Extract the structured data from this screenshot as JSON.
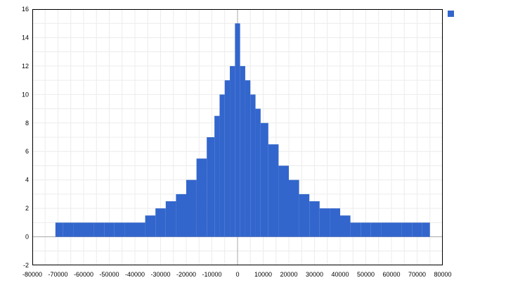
{
  "chart_data": {
    "type": "bar",
    "title": "",
    "xlabel": "",
    "ylabel": "",
    "xlim": [
      -80000,
      80000
    ],
    "ylim": [
      -2,
      16
    ],
    "xticks": [
      -80000,
      -70000,
      -60000,
      -50000,
      -40000,
      -30000,
      -20000,
      -10000,
      0,
      10000,
      20000,
      30000,
      40000,
      50000,
      60000,
      70000,
      80000
    ],
    "yticks": [
      -2,
      0,
      2,
      4,
      6,
      8,
      10,
      12,
      14,
      16
    ],
    "grid": true,
    "legend": "top-right",
    "series": [
      {
        "x": [
          -70000,
          -66000,
          -62000,
          -58000,
          -54000,
          -50000,
          -46000,
          -42000,
          -38000,
          -34000,
          -30000,
          -26000,
          -22000,
          -18000,
          -14000,
          -10000,
          -8000,
          -6000,
          -4000,
          -2000,
          0,
          2000,
          4000,
          6000,
          8000,
          10000,
          14000,
          18000,
          22000,
          26000,
          30000,
          34000,
          38000,
          42000,
          46000,
          50000,
          54000,
          58000,
          62000,
          66000,
          70000,
          74000
        ],
        "values": [
          1,
          1,
          1,
          1,
          1,
          1,
          1,
          1,
          1,
          1.5,
          2,
          2.5,
          3,
          4,
          5.5,
          7,
          8.5,
          10,
          11,
          12,
          15,
          12,
          11,
          10,
          9,
          8,
          6.5,
          5,
          4,
          3,
          2.5,
          2,
          2,
          1.5,
          1,
          1,
          1,
          1,
          1,
          1,
          1,
          1
        ],
        "color": "#3366cc"
      }
    ]
  }
}
